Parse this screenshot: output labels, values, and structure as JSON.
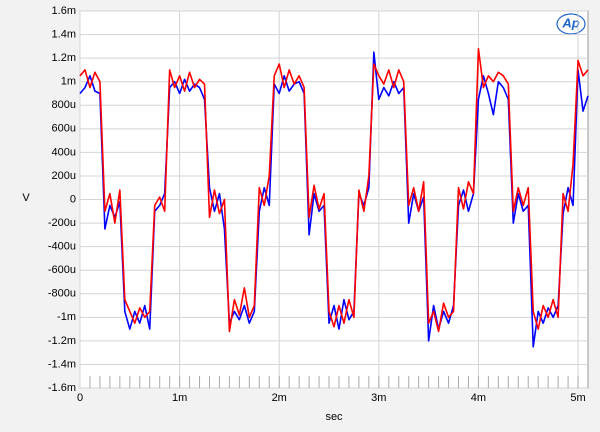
{
  "chart_data": {
    "type": "line",
    "logo": "Ap",
    "xlabel": "sec",
    "ylabel": "V",
    "xlim": [
      0,
      0.0051
    ],
    "ylim": [
      -0.0016,
      0.0016
    ],
    "xticks": [
      0,
      {
        "value": 0.001,
        "label": "1m"
      },
      {
        "value": 0.002,
        "label": "2m"
      },
      {
        "value": 0.003,
        "label": "3m"
      },
      {
        "value": 0.004,
        "label": "4m"
      },
      {
        "value": 0.005,
        "label": "5m"
      }
    ],
    "yticks": [
      {
        "value": 0.0016,
        "label": "1.6m"
      },
      {
        "value": 0.0014,
        "label": "1.4m"
      },
      {
        "value": 0.0012,
        "label": "1.2m"
      },
      {
        "value": 0.001,
        "label": "1m"
      },
      {
        "value": 0.0008,
        "label": "800u"
      },
      {
        "value": 0.0006,
        "label": "600u"
      },
      {
        "value": 0.0004,
        "label": "400u"
      },
      {
        "value": 0.0002,
        "label": "200u"
      },
      0,
      {
        "value": -0.0002,
        "label": "-200u"
      },
      {
        "value": -0.0004,
        "label": "-400u"
      },
      {
        "value": -0.0006,
        "label": "-600u"
      },
      {
        "value": -0.0008,
        "label": "-800u"
      },
      {
        "value": -0.001,
        "label": "-1m"
      },
      {
        "value": -0.0012,
        "label": "-1.2m"
      },
      {
        "value": -0.0014,
        "label": "-1.4m"
      },
      {
        "value": -0.0016,
        "label": "-1.6m"
      }
    ],
    "grid": true,
    "x": [
      0,
      5e-05,
      0.0001,
      0.00015,
      0.0002,
      0.00025,
      0.0003,
      0.00035,
      0.0004,
      0.00045,
      0.0005,
      0.00055,
      0.0006,
      0.00065,
      0.0007,
      0.00075,
      0.0008,
      0.00085,
      0.0009,
      0.00095,
      0.001,
      0.00105,
      0.0011,
      0.00115,
      0.0012,
      0.00125,
      0.0013,
      0.00135,
      0.0014,
      0.00145,
      0.0015,
      0.00155,
      0.0016,
      0.00165,
      0.0017,
      0.00175,
      0.0018,
      0.00185,
      0.0019,
      0.00195,
      0.002,
      0.00205,
      0.0021,
      0.00215,
      0.0022,
      0.00225,
      0.0023,
      0.00235,
      0.0024,
      0.00245,
      0.0025,
      0.00255,
      0.0026,
      0.00265,
      0.0027,
      0.00275,
      0.0028,
      0.00285,
      0.0029,
      0.00295,
      0.003,
      0.00305,
      0.0031,
      0.00315,
      0.0032,
      0.00325,
      0.0033,
      0.00335,
      0.0034,
      0.00345,
      0.0035,
      0.00355,
      0.0036,
      0.00365,
      0.0037,
      0.00375,
      0.0038,
      0.00385,
      0.0039,
      0.00395,
      0.004,
      0.00405,
      0.0041,
      0.00415,
      0.0042,
      0.00425,
      0.0043,
      0.00435,
      0.0044,
      0.00445,
      0.0045,
      0.00455,
      0.0046,
      0.00465,
      0.0047,
      0.00475,
      0.0048,
      0.00485,
      0.0049,
      0.00495,
      0.005,
      0.00505,
      0.0051
    ],
    "series": [
      {
        "color": "#0000ff",
        "values": [
          0.0009,
          0.00095,
          0.00105,
          0.00092,
          0.0009,
          -0.00025,
          -5e-05,
          -0.00015,
          -2e-05,
          -0.00095,
          -0.0011,
          -0.00095,
          -0.00105,
          -0.0009,
          -0.0011,
          -0.0001,
          -5e-05,
          5e-05,
          0.00095,
          0.001,
          0.0009,
          0.00102,
          0.00092,
          0.00098,
          0.00095,
          0.00085,
          0.0001,
          -0.0001,
          5e-05,
          -0.00025,
          -0.00105,
          -0.00095,
          -0.00102,
          -0.0009,
          -0.00105,
          -0.00095,
          -0.0001,
          0.0001,
          -5e-05,
          0.00098,
          0.0009,
          0.00105,
          0.00092,
          0.00098,
          0.001,
          0.0009,
          -0.0003,
          5e-05,
          -0.0001,
          -5e-05,
          -0.00105,
          -0.0009,
          -0.0011,
          -0.00085,
          -0.00102,
          -0.00095,
          5e-05,
          -5e-05,
          0.0001,
          0.00125,
          0.00085,
          0.00095,
          0.00088,
          0.001,
          0.0009,
          0.00095,
          -0.0002,
          5e-05,
          -0.0001,
          2e-05,
          -0.0012,
          -0.0009,
          -0.0011,
          -0.00095,
          -0.00105,
          -0.0009,
          -5e-05,
          8e-05,
          -0.0001,
          5e-05,
          0.00085,
          0.00105,
          0.0009,
          0.00072,
          0.001,
          0.00095,
          0.00085,
          -0.0002,
          5e-05,
          -0.0001,
          -5e-05,
          -0.00125,
          -0.00095,
          -0.00105,
          -0.00092,
          -0.001,
          -0.0009,
          -0.00012,
          0.0001,
          -5e-05,
          0.0011,
          0.00075,
          0.00088
        ]
      },
      {
        "color": "#ff0000",
        "values": [
          0.00105,
          0.0011,
          0.00095,
          0.00108,
          0.001,
          -0.0001,
          5e-05,
          -0.0002,
          8e-05,
          -0.00085,
          -0.00095,
          -0.00105,
          -0.00092,
          -0.001,
          -0.00095,
          -5e-05,
          2e-05,
          -0.0001,
          0.0011,
          0.00095,
          0.00105,
          0.00092,
          0.00108,
          0.00095,
          0.00102,
          0.00098,
          -0.00015,
          8e-05,
          -0.00012,
          0,
          -0.00112,
          -0.00085,
          -0.00098,
          -0.00075,
          -0.001,
          -0.0009,
          0.0001,
          -5e-05,
          0.0002,
          0.00105,
          0.00115,
          0.00095,
          0.0011,
          0.00098,
          0.00105,
          0.00095,
          -0.00015,
          0.00012,
          -8e-05,
          5e-05,
          -0.00095,
          -0.00108,
          -0.0009,
          -0.00105,
          -0.00085,
          -0.001,
          8e-05,
          -0.0001,
          0.0002,
          0.00115,
          0.00105,
          0.00098,
          0.0011,
          0.00095,
          0.0011,
          0.001,
          -5e-05,
          0.0001,
          -0.0001,
          0.00015,
          -0.00105,
          -0.00095,
          -0.00112,
          -0.00088,
          -0.001,
          -0.00095,
          0.0001,
          -8e-05,
          0.00015,
          5e-05,
          0.00128,
          0.00095,
          0.00105,
          0.001,
          0.00108,
          0.00105,
          0.00098,
          -0.0001,
          0.0001,
          -5e-05,
          0.0001,
          -0.00095,
          -0.0011,
          -0.0009,
          -0.001,
          -0.00085,
          -0.001,
          5e-05,
          -0.0001,
          0.0003,
          0.00118,
          0.00105,
          0.0011
        ]
      }
    ]
  }
}
